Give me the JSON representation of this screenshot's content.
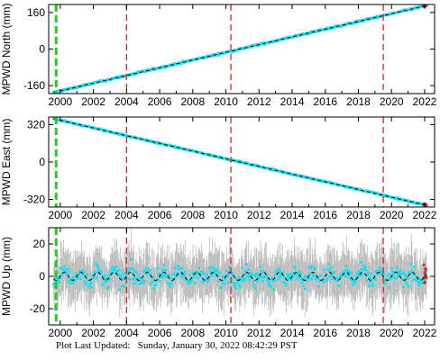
{
  "chart_data": [
    {
      "type": "scatter",
      "ylabel": "MPWD North (mm)",
      "xlim": [
        1999.3,
        2022.6
      ],
      "ylim": [
        -195,
        195
      ],
      "x_ticks": [
        2000,
        2002,
        2004,
        2006,
        2008,
        2010,
        2012,
        2014,
        2016,
        2018,
        2020,
        2022
      ],
      "y_ticks": [
        -160,
        0,
        160
      ],
      "series": [
        {
          "kind": "observations",
          "start": [
            1999.6,
            -190
          ],
          "end": [
            2022.1,
            190
          ],
          "scatter": 4,
          "error": 6
        },
        {
          "kind": "model_fit",
          "start": [
            1999.6,
            -190
          ],
          "end": [
            2022.1,
            190
          ]
        }
      ],
      "vertical_markers": [
        {
          "x": 1999.75,
          "color": "#22cc22"
        },
        {
          "x": 2004.0,
          "color": "#dd2222"
        },
        {
          "x": 2010.3,
          "color": "#dd2222"
        },
        {
          "x": 2019.5,
          "color": "#dd2222"
        }
      ],
      "grid": false
    },
    {
      "type": "scatter",
      "ylabel": "MPWD East (mm)",
      "xlim": [
        1999.3,
        2022.6
      ],
      "ylim": [
        -385,
        385
      ],
      "x_ticks": [
        2000,
        2002,
        2004,
        2006,
        2008,
        2010,
        2012,
        2014,
        2016,
        2018,
        2020,
        2022
      ],
      "y_ticks": [
        -320,
        0,
        320
      ],
      "series": [
        {
          "kind": "observations",
          "start": [
            1999.6,
            370
          ],
          "end": [
            2022.1,
            -370
          ],
          "scatter": 6,
          "error": 10
        },
        {
          "kind": "model_fit",
          "start": [
            1999.6,
            370
          ],
          "end": [
            2022.1,
            -370
          ]
        }
      ],
      "vertical_markers": [
        {
          "x": 1999.75,
          "color": "#22cc22"
        },
        {
          "x": 2004.0,
          "color": "#dd2222"
        },
        {
          "x": 2010.3,
          "color": "#dd2222"
        },
        {
          "x": 2019.5,
          "color": "#dd2222"
        }
      ],
      "grid": false
    },
    {
      "type": "scatter",
      "ylabel": "MPWD Up (mm)",
      "xlim": [
        1999.3,
        2022.6
      ],
      "ylim": [
        -30,
        30
      ],
      "x_ticks": [
        2000,
        2002,
        2004,
        2006,
        2008,
        2010,
        2012,
        2014,
        2016,
        2018,
        2020,
        2022
      ],
      "y_ticks": [
        -20,
        0,
        20
      ],
      "series": [
        {
          "kind": "observations",
          "start": [
            1999.6,
            0
          ],
          "end": [
            2022.1,
            0
          ],
          "scatter": 5,
          "error": 14,
          "seasonal_amplitude": 3
        },
        {
          "kind": "model_fit",
          "start": [
            1999.6,
            0
          ],
          "end": [
            2022.1,
            0
          ],
          "seasonal_amplitude": 2.5
        }
      ],
      "vertical_markers": [
        {
          "x": 1999.75,
          "color": "#22cc22"
        },
        {
          "x": 2004.0,
          "color": "#dd2222"
        },
        {
          "x": 2010.3,
          "color": "#dd2222"
        },
        {
          "x": 2019.5,
          "color": "#dd2222"
        }
      ],
      "grid": false
    }
  ],
  "colors": {
    "observations": "#22ddee",
    "error_bars": "#b4b4b4",
    "model_fit": "#000000",
    "recent_points": "#dd2222"
  },
  "footer": {
    "label": "Plot Last Updated:",
    "timestamp": "Sunday, January 30, 2022 08:42:29 PST"
  }
}
